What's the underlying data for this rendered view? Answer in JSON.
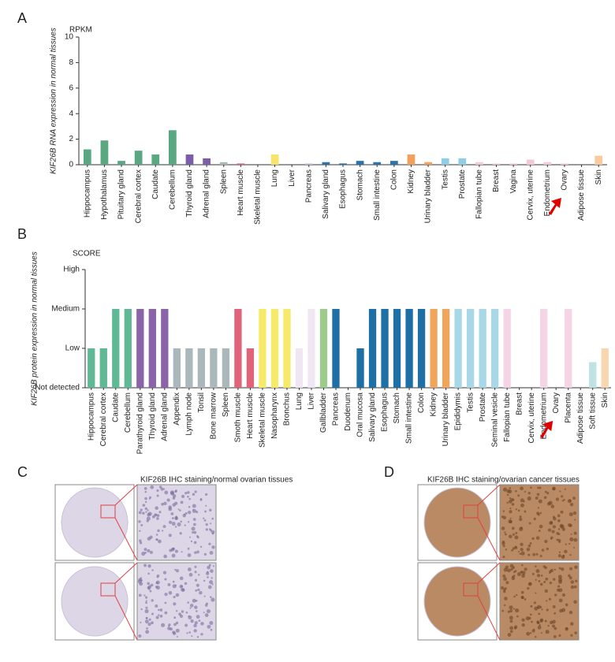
{
  "panel_labels": [
    "A",
    "B",
    "C",
    "D"
  ],
  "chart_data": [
    {
      "type": "bar",
      "unit_label": "RPKM",
      "ylabel": "KIF26B RNA expression in normal tissues",
      "categories": [
        "Hippocampus",
        "Hypothalamus",
        "Pituitary gland",
        "Cerebral cortex",
        "Caudate",
        "Cerebellum",
        "Thyroid gland",
        "Adrenal gland",
        "Spleen",
        "Heart muscle",
        "Skeletal muscle",
        "Lung",
        "Liver",
        "Pancreas",
        "Salivary gland",
        "Esophagus",
        "Stomach",
        "Small intestine",
        "Colon",
        "Kidney",
        "Urinary bladder",
        "Testis",
        "Prostate",
        "Fallopian tube",
        "Breast",
        "Vagina",
        "Cervix, uterine",
        "Endometrium",
        "Ovary",
        "Adipose tissue",
        "Skin"
      ],
      "values": [
        1.2,
        1.9,
        0.3,
        1.1,
        0.8,
        2.7,
        0.8,
        0.5,
        0.2,
        0.1,
        0,
        0.8,
        0,
        0.1,
        0.2,
        0.1,
        0.3,
        0.2,
        0.3,
        0.8,
        0.2,
        0.5,
        0.5,
        0.2,
        0.1,
        0.1,
        0.4,
        0.2,
        0.1,
        0,
        0.7
      ],
      "colors": [
        "#5aa882",
        "#5aa882",
        "#5aa882",
        "#5aa882",
        "#5aa882",
        "#5aa882",
        "#7b5ea7",
        "#7b5ea7",
        "#aab6b8",
        "#d96a7d",
        "#d96a7d",
        "#f6e46b",
        "#e9dcef",
        "#c9b9dc",
        "#2d73ab",
        "#2d73ab",
        "#2d73ab",
        "#2d73ab",
        "#2d73ab",
        "#f2a05e",
        "#f2a05e",
        "#8fcde6",
        "#8fcde6",
        "#f4c7dc",
        "#f4c7dc",
        "#f4c7dc",
        "#f4c7dc",
        "#f4c7dc",
        "#f4c7dc",
        "#bfe2e2",
        "#f8ca9e"
      ],
      "ylim": [
        0,
        10
      ],
      "yticks": [
        0,
        2,
        4,
        6,
        8,
        10
      ]
    },
    {
      "type": "bar",
      "unit_label": "SCORE",
      "ylabel": "KIF26B protein expression in normal tissues",
      "categories": [
        "Hippocampus",
        "Cerebral cortex",
        "Caudate",
        "Cerebellum",
        "Parathyroid gland",
        "Thyroid gland",
        "Adrenal gland",
        "Appendix",
        "Lymph node",
        "Tonsil",
        "Bone marrow",
        "Spleen",
        "Smoth muscle",
        "Heart muscle",
        "Skeletal muscle",
        "Nasopharynx",
        "Bronchus",
        "Lung",
        "Liver",
        "Gallbladder",
        "Pancreas",
        "Duodenum",
        "Oral mucosa",
        "Salivary gland",
        "Esophagus",
        "Stomach",
        "Small intestine",
        "Colon",
        "Kidney",
        "Urinary bladder",
        "Epididymis",
        "Testis",
        "Prostate",
        "Seminal vesicle",
        "Fallopian tube",
        "Breast",
        "Cervix, uterine",
        "Endometrium",
        "Ovary",
        "Placenta",
        "Adipose tissue",
        "Soft tissue",
        "Skin"
      ],
      "values": [
        1,
        1,
        2,
        2,
        2,
        2,
        2,
        1,
        1,
        1,
        1,
        1,
        2,
        1,
        2,
        2,
        2,
        1,
        2,
        2,
        2,
        0,
        1,
        2,
        2,
        2,
        2,
        2,
        2,
        2,
        2,
        2,
        2,
        2,
        2,
        0,
        0,
        2,
        0,
        2,
        0,
        0.65,
        1
      ],
      "colors": [
        "#5fb995",
        "#5fb995",
        "#5fb995",
        "#5fb995",
        "#8a63a8",
        "#8a63a8",
        "#8a63a8",
        "#aab8bb",
        "#aab8bb",
        "#aab8bb",
        "#aab8bb",
        "#aab8bb",
        "#e0637a",
        "#e0637a",
        "#f7ea6a",
        "#f7ea6a",
        "#f7ea6a",
        "#f1e6f3",
        "#f1e6f3",
        "#9dcb8b",
        "#1f6fa6",
        "#1d6fa5",
        "#1d6fa5",
        "#1d6fa5",
        "#1d6fa5",
        "#1d6fa5",
        "#1d6fa5",
        "#1d6fa5",
        "#f0a55a",
        "#f0a55a",
        "#a8d8e8",
        "#a8d8e8",
        "#a8d8e8",
        "#a8d8e8",
        "#f5d4e6",
        "#f5d4e6",
        "#f5d4e6",
        "#f5d4e6",
        "#f5d4e6",
        "#f5d4e6",
        "#bfe2e2",
        "#bfe2e2",
        "#f8d6b0"
      ],
      "ylim": [
        0,
        3
      ],
      "yticks": [
        {
          "value": 0,
          "label": "Not detected"
        },
        {
          "value": 1,
          "label": "Low"
        },
        {
          "value": 2,
          "label": "Medium"
        },
        {
          "value": 3,
          "label": "High"
        }
      ]
    }
  ],
  "images": [
    {
      "caption": "KIF26B IHC staining/normal ovarian tissues"
    },
    {
      "caption": "KIF26B IHC staining/ovarian cancer tissues"
    }
  ]
}
